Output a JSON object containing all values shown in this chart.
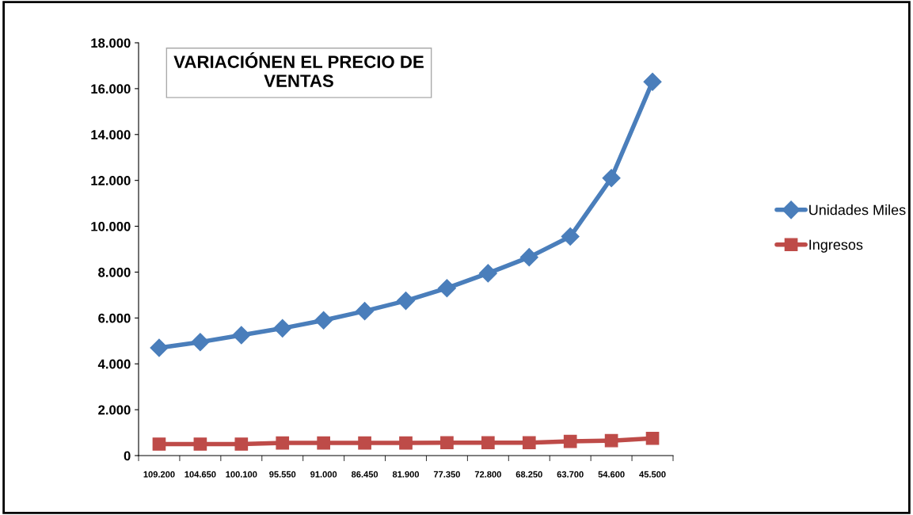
{
  "chart_data": {
    "type": "line",
    "title": "VARIACIÓNEN EL PRECIO DE\nVENTAS",
    "categories": [
      "109.200",
      "104.650",
      "100.100",
      "95.550",
      "91.000",
      "86.450",
      "81.900",
      "77.350",
      "72.800",
      "68.250",
      "63.700",
      "54.600",
      "45.500"
    ],
    "series": [
      {
        "name": "Unidades Miles",
        "color": "#4a7ebb",
        "marker": "diamond",
        "values": [
          4700,
          4950,
          5250,
          5550,
          5900,
          6300,
          6750,
          7300,
          7950,
          8650,
          9550,
          12100,
          16300
        ]
      },
      {
        "name": "Ingresos",
        "color": "#be4b48",
        "marker": "square",
        "values": [
          500,
          500,
          500,
          550,
          550,
          550,
          550,
          560,
          560,
          560,
          620,
          650,
          750
        ]
      }
    ],
    "ylim": [
      0,
      18000
    ],
    "yticks": [
      0,
      {
        "value": 2000,
        "label": "2.000"
      },
      {
        "value": 4000,
        "label": "4.000"
      },
      {
        "value": 6000,
        "label": "6.000"
      },
      {
        "value": 8000,
        "label": "8.000"
      },
      {
        "value": 10000,
        "label": "10.000"
      },
      {
        "value": 12000,
        "label": "12.000"
      },
      {
        "value": 14000,
        "label": "14.000"
      },
      {
        "value": 16000,
        "label": "16.000"
      },
      {
        "value": 18000,
        "label": "18.000"
      }
    ],
    "grid": false,
    "legend": "right",
    "line_style": "solid"
  }
}
